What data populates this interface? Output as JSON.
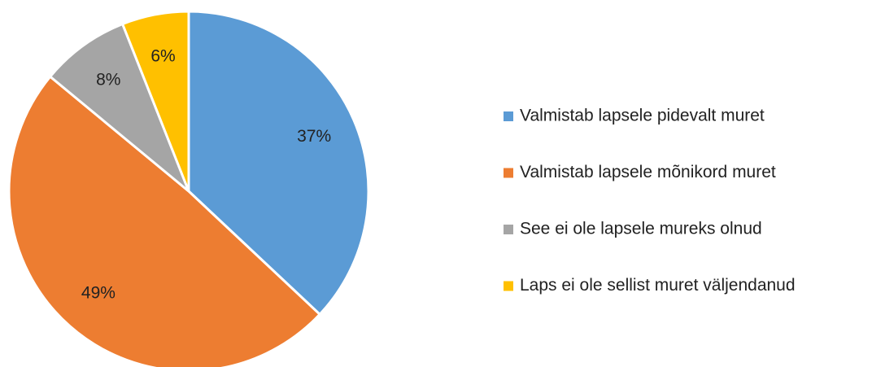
{
  "chart_data": {
    "type": "pie",
    "categories": [
      "Valmistab lapsele pidevalt muret",
      "Valmistab lapsele mõnikord muret",
      "See ei ole lapsele mureks olnud",
      "Laps ei ole sellist muret väljendanud"
    ],
    "values": [
      37,
      49,
      8,
      6
    ],
    "value_labels": [
      "37%",
      "49%",
      "8%",
      "6%"
    ],
    "colors": [
      "#5b9bd5",
      "#ed7d31",
      "#a5a5a5",
      "#ffc000"
    ],
    "legend": "right"
  }
}
